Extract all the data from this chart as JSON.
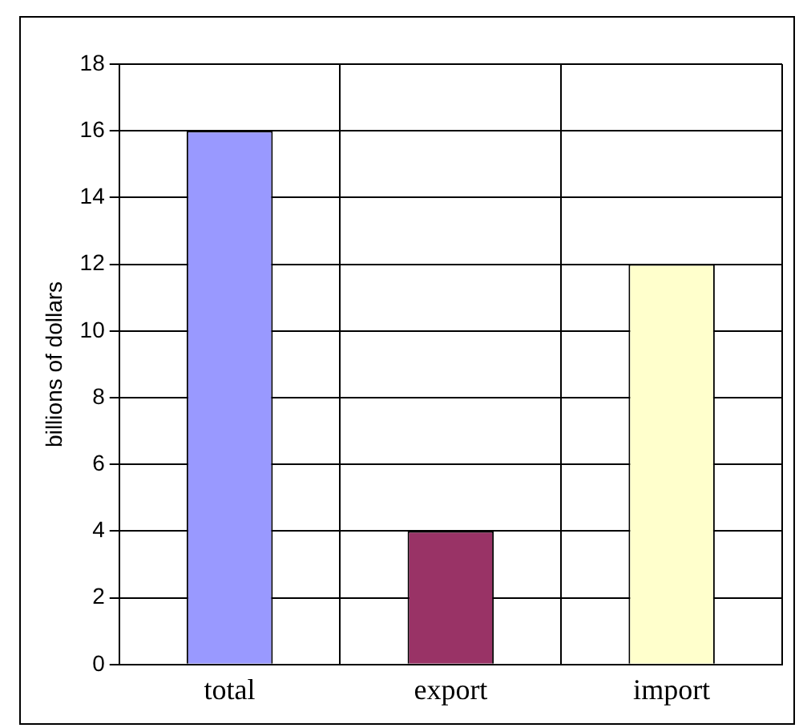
{
  "chart_data": {
    "type": "bar",
    "ylabel": "billions of dollars",
    "categories": [
      "total",
      "export",
      "import"
    ],
    "values": [
      16,
      4,
      12
    ],
    "colors": [
      "#9999ff",
      "#993366",
      "#ffffcc"
    ],
    "ylim": [
      0,
      18
    ],
    "yticks": [
      0,
      2,
      4,
      6,
      8,
      10,
      12,
      14,
      16,
      18
    ],
    "grid": true,
    "legend": false
  }
}
